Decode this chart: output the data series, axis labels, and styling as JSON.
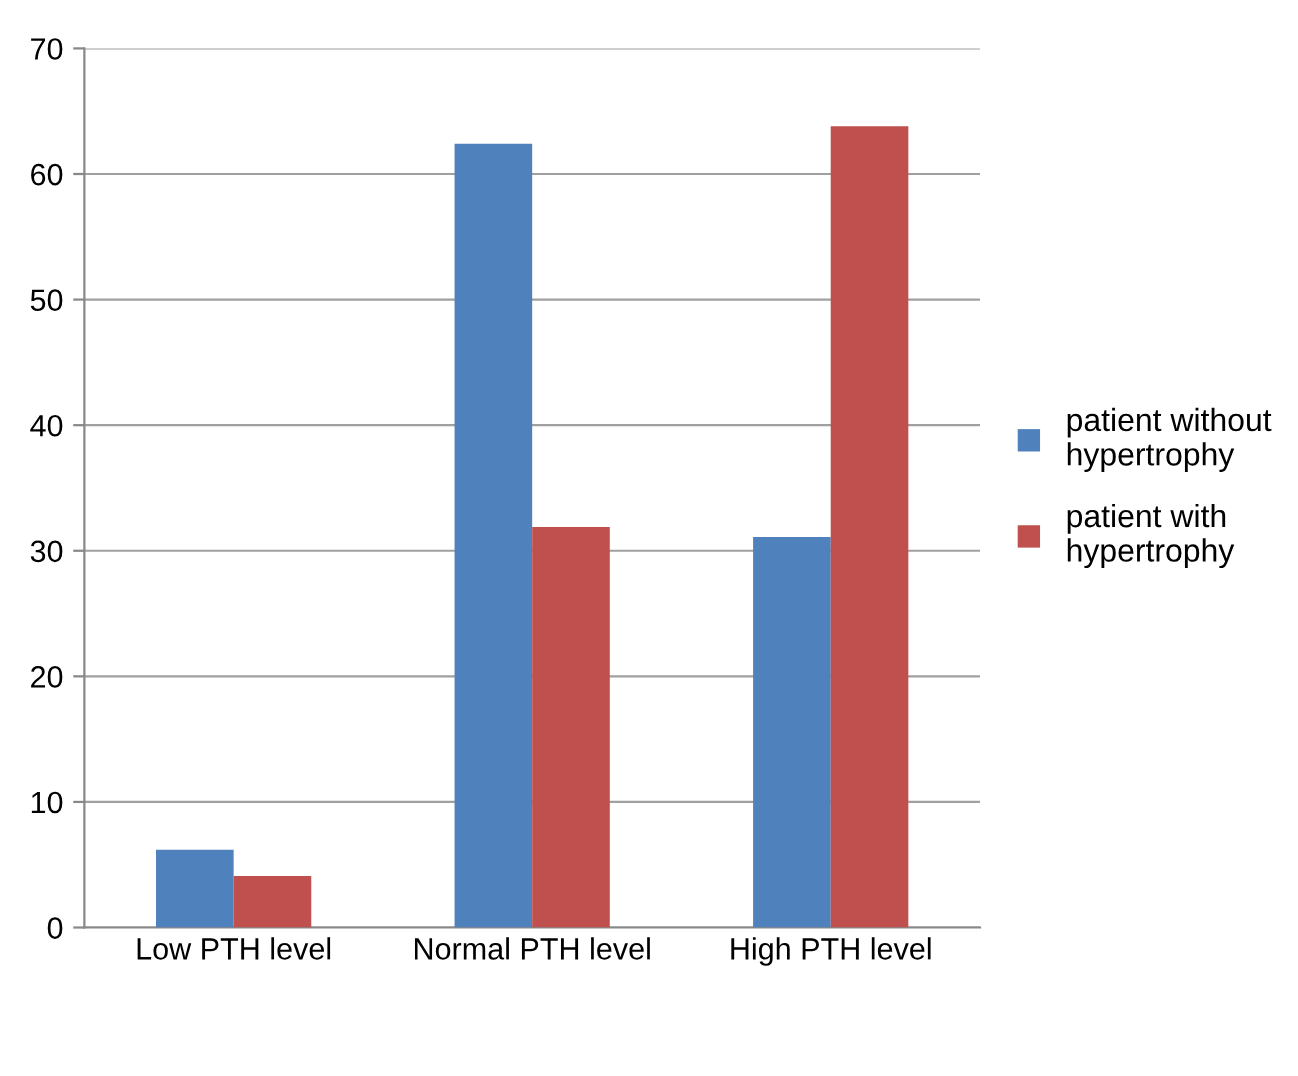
{
  "chart_data": {
    "type": "bar",
    "categories": [
      "Low PTH level",
      "Normal PTH level",
      "High PTH level"
    ],
    "series": [
      {
        "name": "patient without hypertrophy",
        "color": "#4f81bd",
        "values": [
          6.2,
          62.4,
          31.1
        ]
      },
      {
        "name": "patient with hypertrophy",
        "color": "#c0504d",
        "values": [
          4.1,
          31.9,
          63.8
        ]
      }
    ],
    "ylim": [
      0,
      70
    ],
    "yticks": [
      0,
      10,
      20,
      30,
      40,
      50,
      60,
      70
    ],
    "grid": "y",
    "legend": "right"
  }
}
